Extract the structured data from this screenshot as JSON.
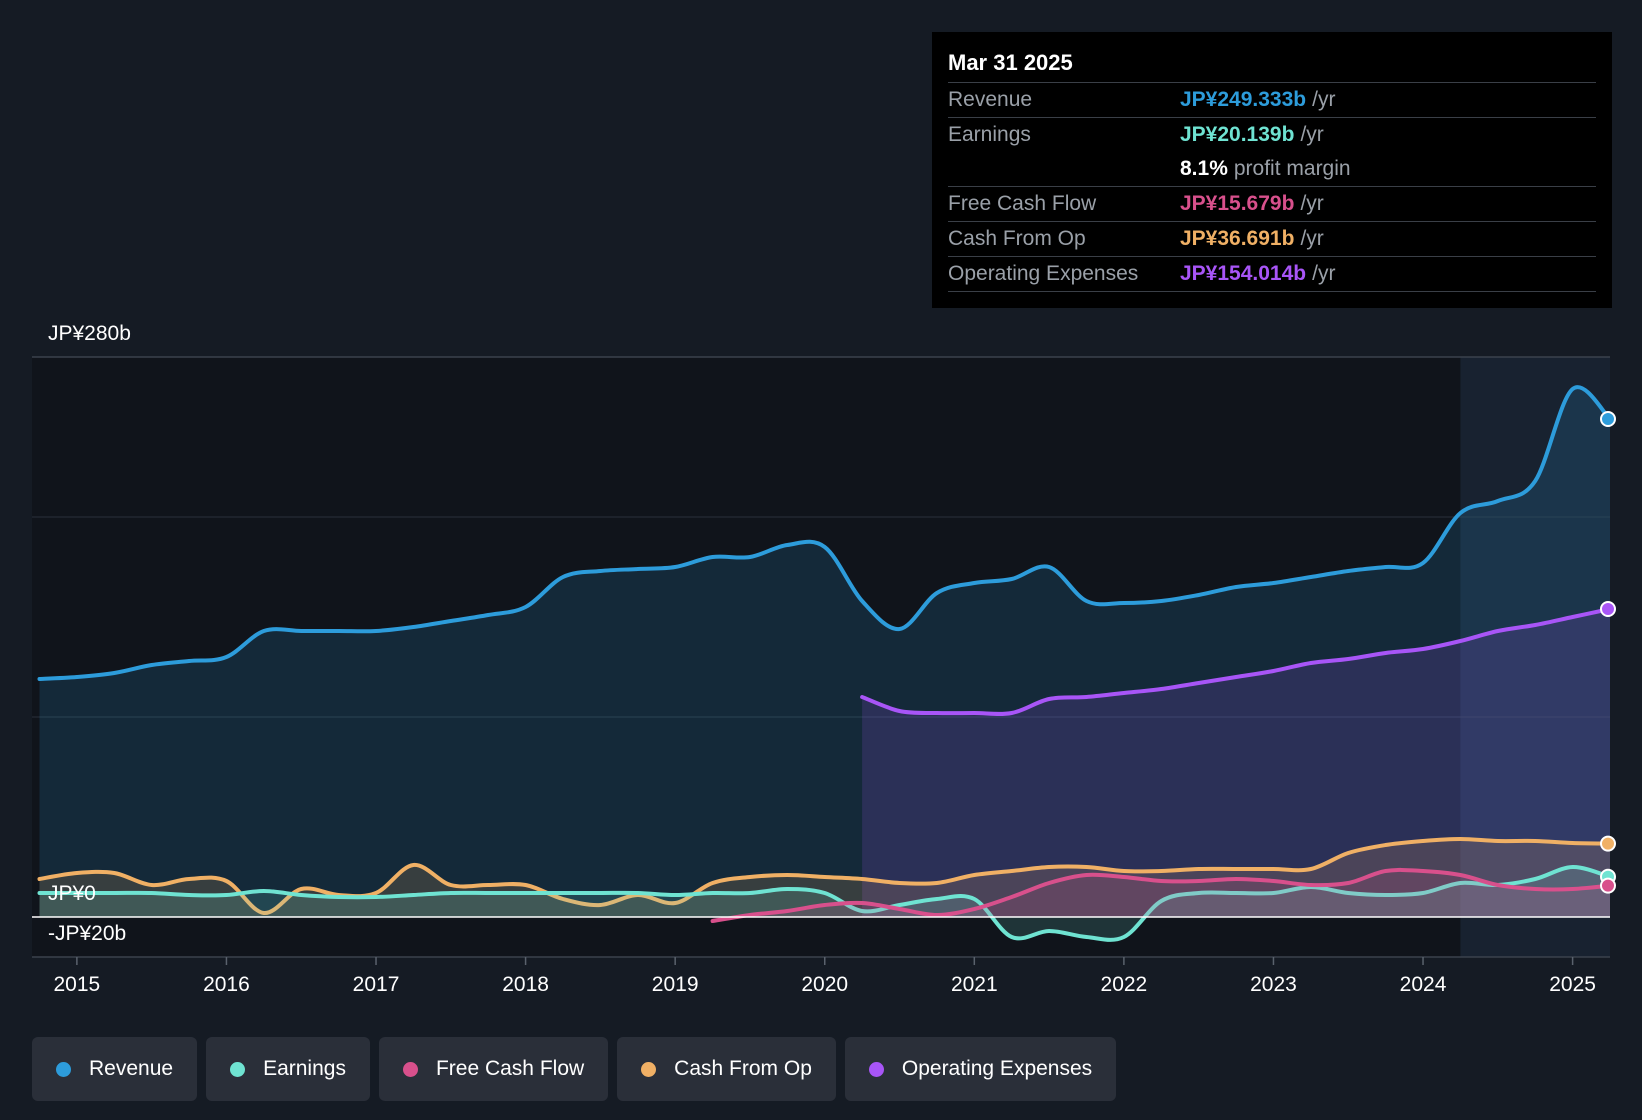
{
  "tooltip": {
    "date": "Mar 31 2025",
    "rows": [
      {
        "label": "Revenue",
        "value": "JP¥249.333b",
        "unit": "/yr",
        "color": "#2d9cdb"
      },
      {
        "label": "Earnings",
        "value": "JP¥20.139b",
        "unit": "/yr",
        "color": "#6fe3d2"
      },
      {
        "label": "",
        "value": "8.1%",
        "unit": "profit margin",
        "color": "#ffffff"
      },
      {
        "label": "Free Cash Flow",
        "value": "JP¥15.679b",
        "unit": "/yr",
        "color": "#d8508c"
      },
      {
        "label": "Cash From Op",
        "value": "JP¥36.691b",
        "unit": "/yr",
        "color": "#f0b065"
      },
      {
        "label": "Operating Expenses",
        "value": "JP¥154.014b",
        "unit": "/yr",
        "color": "#a855f7"
      }
    ]
  },
  "legend": [
    {
      "label": "Revenue",
      "color": "#2d9cdb"
    },
    {
      "label": "Earnings",
      "color": "#6fe3d2"
    },
    {
      "label": "Free Cash Flow",
      "color": "#d8508c"
    },
    {
      "label": "Cash From Op",
      "color": "#f0b065"
    },
    {
      "label": "Operating Expenses",
      "color": "#a855f7"
    }
  ],
  "chart_data": {
    "type": "line",
    "title": "",
    "y_top_label": "JP¥280b",
    "y_zero_label": "JP¥0",
    "y_bottom_label": "-JP¥20b",
    "ylim": [
      -20,
      280
    ],
    "xlim": [
      2014.7,
      2025.25
    ],
    "x_ticks": [
      "2015",
      "2016",
      "2017",
      "2018",
      "2019",
      "2020",
      "2021",
      "2022",
      "2023",
      "2024",
      "2025"
    ],
    "highlight_start": 2024.25,
    "series": [
      {
        "name": "Revenue",
        "color": "#2d9cdb",
        "area": true,
        "x": [
          2014.75,
          2015.0,
          2015.25,
          2015.5,
          2015.75,
          2016.0,
          2016.25,
          2016.5,
          2016.75,
          2017.0,
          2017.25,
          2017.5,
          2017.75,
          2018.0,
          2018.25,
          2018.5,
          2018.75,
          2019.0,
          2019.25,
          2019.5,
          2019.75,
          2020.0,
          2020.25,
          2020.5,
          2020.75,
          2021.0,
          2021.25,
          2021.5,
          2021.75,
          2022.0,
          2022.25,
          2022.5,
          2022.75,
          2023.0,
          2023.25,
          2023.5,
          2023.75,
          2024.0,
          2024.25,
          2024.5,
          2024.75,
          2025.0,
          2025.25
        ],
        "values": [
          119,
          120,
          122,
          126,
          128,
          130,
          143,
          143,
          143,
          143,
          145,
          148,
          151,
          155,
          170,
          173,
          174,
          175,
          180,
          180,
          186,
          185,
          158,
          144,
          162,
          167,
          169,
          175,
          158,
          157,
          158,
          161,
          165,
          167,
          170,
          173,
          175,
          177,
          202,
          208,
          218,
          264,
          249
        ]
      },
      {
        "name": "Operating Expenses",
        "color": "#a855f7",
        "area": true,
        "x": [
          2020.25,
          2020.5,
          2020.75,
          2021.0,
          2021.25,
          2021.5,
          2021.75,
          2022.0,
          2022.25,
          2022.5,
          2022.75,
          2023.0,
          2023.25,
          2023.5,
          2023.75,
          2024.0,
          2024.25,
          2024.5,
          2024.75,
          2025.0,
          2025.25
        ],
        "values": [
          110,
          103,
          102,
          102,
          102,
          109,
          110,
          112,
          114,
          117,
          120,
          123,
          127,
          129,
          132,
          134,
          138,
          143,
          146,
          150,
          154
        ]
      },
      {
        "name": "Cash From Op",
        "color": "#f0b065",
        "area": true,
        "x": [
          2014.75,
          2015.0,
          2015.25,
          2015.5,
          2015.75,
          2016.0,
          2016.25,
          2016.5,
          2016.75,
          2017.0,
          2017.25,
          2017.5,
          2017.75,
          2018.0,
          2018.25,
          2018.5,
          2018.75,
          2019.0,
          2019.25,
          2019.5,
          2019.75,
          2020.0,
          2020.25,
          2020.5,
          2020.75,
          2021.0,
          2021.25,
          2021.5,
          2021.75,
          2022.0,
          2022.25,
          2022.5,
          2022.75,
          2023.0,
          2023.25,
          2023.5,
          2023.75,
          2024.0,
          2024.25,
          2024.5,
          2024.75,
          2025.0,
          2025.25
        ],
        "values": [
          19,
          22,
          22,
          16,
          19,
          18,
          2,
          14,
          11,
          12,
          26,
          16,
          16,
          16,
          9,
          6,
          11,
          7,
          17,
          20,
          21,
          20,
          19,
          17,
          17,
          21,
          23,
          25,
          25,
          23,
          23,
          24,
          24,
          24,
          24,
          32,
          36,
          38,
          39,
          38,
          38,
          37,
          36.7
        ]
      },
      {
        "name": "Earnings",
        "color": "#6fe3d2",
        "area": true,
        "x": [
          2014.75,
          2015.0,
          2015.25,
          2015.5,
          2015.75,
          2016.0,
          2016.25,
          2016.5,
          2016.75,
          2017.0,
          2017.25,
          2017.5,
          2017.75,
          2018.0,
          2018.25,
          2018.5,
          2018.75,
          2019.0,
          2019.25,
          2019.5,
          2019.75,
          2020.0,
          2020.25,
          2020.5,
          2020.75,
          2021.0,
          2021.25,
          2021.5,
          2021.75,
          2022.0,
          2022.25,
          2022.5,
          2022.75,
          2023.0,
          2023.25,
          2023.5,
          2023.75,
          2024.0,
          2024.25,
          2024.5,
          2024.75,
          2025.0,
          2025.25
        ],
        "values": [
          12,
          12,
          12,
          12,
          11,
          11,
          13,
          11,
          10,
          10,
          11,
          12,
          12,
          12,
          12,
          12,
          12,
          11,
          12,
          12,
          14,
          12,
          3,
          6,
          9,
          9,
          -10,
          -7,
          -10,
          -10,
          8,
          12,
          12,
          12,
          15,
          12,
          11,
          12,
          17,
          16,
          19,
          25,
          20.1
        ]
      },
      {
        "name": "Free Cash Flow",
        "color": "#d8508c",
        "area": true,
        "x": [
          2019.25,
          2019.5,
          2019.75,
          2020.0,
          2020.25,
          2020.5,
          2020.75,
          2021.0,
          2021.25,
          2021.5,
          2021.75,
          2022.0,
          2022.25,
          2022.5,
          2022.75,
          2023.0,
          2023.25,
          2023.5,
          2023.75,
          2024.0,
          2024.25,
          2024.5,
          2024.75,
          2025.0,
          2025.25
        ],
        "values": [
          -2,
          1,
          3,
          6,
          7,
          4,
          1,
          4,
          10,
          17,
          21,
          20,
          18,
          18,
          19,
          18,
          16,
          17,
          23,
          23,
          21,
          16,
          14,
          14,
          15.7
        ]
      }
    ]
  }
}
